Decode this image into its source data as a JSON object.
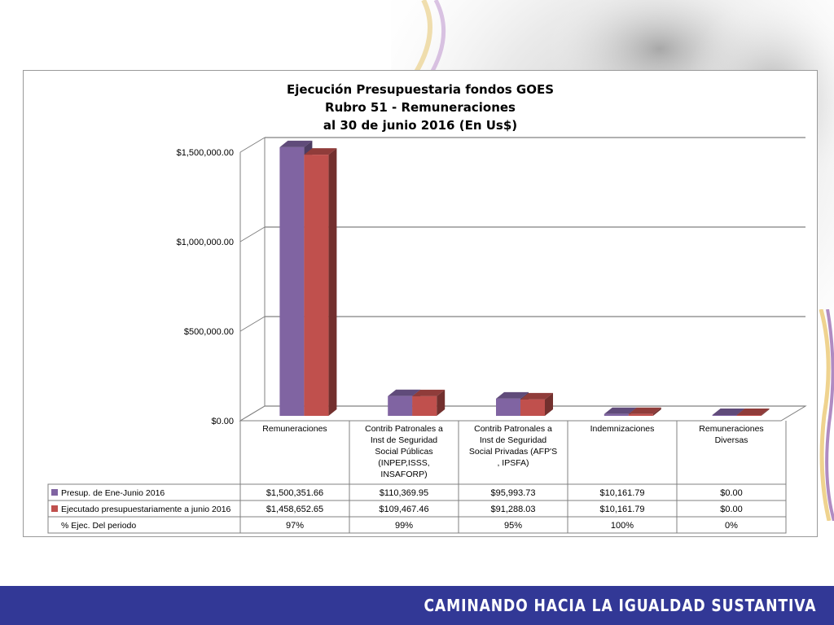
{
  "chart_data": {
    "type": "bar",
    "title_lines": [
      "Ejecución Presupuestaria fondos GOES",
      "Rubro 51 - Remuneraciones",
      "al 30 de  junio 2016 (En Us$)"
    ],
    "categories": [
      "Remuneraciones",
      "Contrib Patronales a Inst de Seguridad Social Públicas (INPEP,ISSS, INSAFORP)",
      "Contrib Patronales a Inst de Seguridad Social Privadas (AFP'S , IPSFA)",
      "Indemnizaciones",
      "Remuneraciones Diversas"
    ],
    "category_lines": [
      [
        "Remuneraciones"
      ],
      [
        "Contrib Patronales a",
        "Inst de Seguridad",
        "Social Públicas",
        "(INPEP,ISSS,",
        "INSAFORP)"
      ],
      [
        "Contrib Patronales a",
        "Inst de Seguridad",
        "Social Privadas (AFP'S",
        ", IPSFA)"
      ],
      [
        "Indemnizaciones"
      ],
      [
        "Remuneraciones",
        "Diversas"
      ]
    ],
    "series": [
      {
        "name": "Presup. de Ene-Junio 2016",
        "color": "#8064a2",
        "values": [
          1500351.66,
          110369.95,
          95993.73,
          10161.79,
          0
        ],
        "labels": [
          "$1,500,351.66",
          "$110,369.95",
          "$95,993.73",
          "$10,161.79",
          "$0.00"
        ]
      },
      {
        "name": "Ejecutado presupuestariamente a junio 2016",
        "color": "#c0504d",
        "values": [
          1458652.65,
          109467.46,
          91288.03,
          10161.79,
          0
        ],
        "labels": [
          "$1,458,652.65",
          "$109,467.46",
          "$91,288.03",
          "$10,161.79",
          "$0.00"
        ]
      }
    ],
    "extra_row": {
      "name": "% Ejec. Del periodo",
      "labels": [
        "97%",
        "99%",
        "95%",
        "100%",
        "0%"
      ]
    },
    "y_ticks": [
      0,
      500000,
      1000000,
      1500000
    ],
    "y_tick_labels": [
      "$0.00",
      "$500,000.00",
      "$1,000,000.00",
      "$1,500,000.00"
    ],
    "ylim": [
      0,
      1500000
    ],
    "grid": true,
    "legend": "table"
  },
  "footer": {
    "text": "CAMINANDO HACIA LA IGUALDAD SUSTANTIVA"
  },
  "colors": {
    "footer_bar": "#323896",
    "grid": "#808080"
  }
}
